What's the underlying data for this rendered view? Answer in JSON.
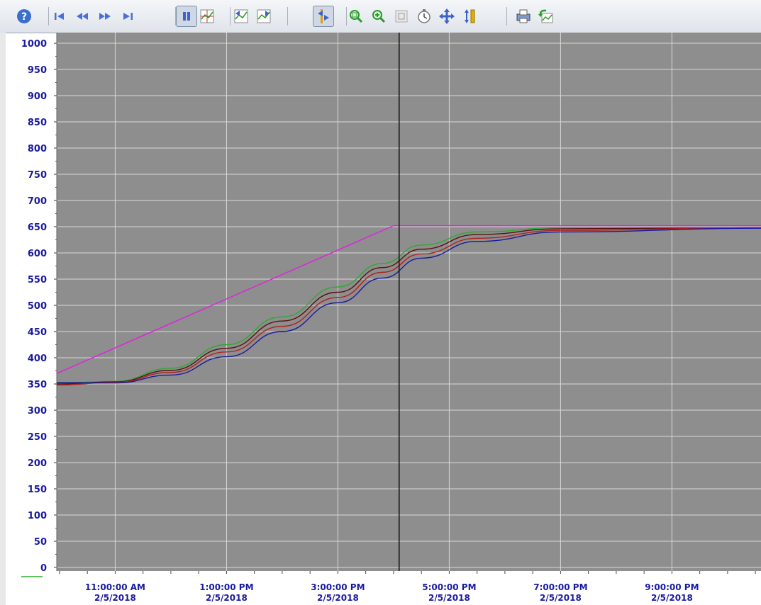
{
  "toolbar": {
    "buttons": [
      {
        "name": "help-icon"
      },
      {
        "name": "first-icon"
      },
      {
        "name": "previous-icon"
      },
      {
        "name": "next-icon"
      },
      {
        "name": "last-icon"
      },
      {
        "name": "pause-icon",
        "active": true
      },
      {
        "name": "trend-select-icon"
      },
      {
        "name": "trend-back-icon"
      },
      {
        "name": "trend-forward-icon"
      },
      {
        "name": "ruler-toggle-icon",
        "active": true
      },
      {
        "name": "zoom-area-icon"
      },
      {
        "name": "zoom-in-icon"
      },
      {
        "name": "zoom-reset-icon"
      },
      {
        "name": "time-range-icon"
      },
      {
        "name": "pan-icon"
      },
      {
        "name": "value-axis-icon"
      },
      {
        "name": "print-icon"
      },
      {
        "name": "undo-icon"
      }
    ]
  },
  "colors": {
    "plot_bg": "#8e8e8e",
    "grid": "#d8d8d8",
    "axis_text": "#1a1aa0",
    "setpoint": "#e020e0",
    "green": "#2fa82f",
    "red": "#b02020",
    "darkred": "#5a1010",
    "navy": "#1a1aa0"
  },
  "chart_data": {
    "type": "line",
    "ylim": [
      0,
      1000
    ],
    "y_ticks": [
      "1000",
      "950",
      "900",
      "850",
      "800",
      "750",
      "700",
      "650",
      "600",
      "550",
      "500",
      "450",
      "400",
      "350",
      "300",
      "250",
      "200",
      "150",
      "100",
      "50",
      "0"
    ],
    "x_ticks": [
      {
        "time": "11:00:00 AM",
        "date": "2/5/2018"
      },
      {
        "time": "1:00:00 PM",
        "date": "2/5/2018"
      },
      {
        "time": "3:00:00 PM",
        "date": "2/5/2018"
      },
      {
        "time": "5:00:00 PM",
        "date": "2/5/2018"
      },
      {
        "time": "7:00:00 PM",
        "date": "2/5/2018"
      },
      {
        "time": "9:00:00 PM",
        "date": "2/5/2018"
      }
    ],
    "x_range_hours": [
      9.95,
      22.6
    ],
    "ruler_hour": 16.1,
    "series": [
      {
        "color": "#e020e0",
        "points": [
          [
            9.95,
            370
          ],
          [
            16.0,
            652
          ],
          [
            22.6,
            652
          ]
        ]
      },
      {
        "color": "#2fa82f",
        "points": [
          [
            9.95,
            352
          ],
          [
            11,
            355
          ],
          [
            12,
            380
          ],
          [
            13,
            425
          ],
          [
            14,
            478
          ],
          [
            15,
            535
          ],
          [
            15.8,
            580
          ],
          [
            16.5,
            615
          ],
          [
            17.5,
            640
          ],
          [
            19,
            648
          ],
          [
            22.6,
            648
          ]
        ]
      },
      {
        "color": "#5a1010",
        "points": [
          [
            9.95,
            350
          ],
          [
            11,
            354
          ],
          [
            12,
            376
          ],
          [
            13,
            418
          ],
          [
            14,
            470
          ],
          [
            15,
            525
          ],
          [
            15.8,
            572
          ],
          [
            16.5,
            607
          ],
          [
            17.5,
            635
          ],
          [
            19,
            646
          ],
          [
            22.6,
            648
          ]
        ]
      },
      {
        "color": "#b02020",
        "points": [
          [
            9.95,
            348
          ],
          [
            11,
            353
          ],
          [
            12,
            372
          ],
          [
            13,
            411
          ],
          [
            14,
            460
          ],
          [
            15,
            515
          ],
          [
            15.8,
            563
          ],
          [
            16.5,
            598
          ],
          [
            17.5,
            628
          ],
          [
            19,
            643
          ],
          [
            22.6,
            648
          ]
        ]
      },
      {
        "color": "#1a1aa0",
        "points": [
          [
            9.95,
            353
          ],
          [
            11,
            352
          ],
          [
            12,
            367
          ],
          [
            13,
            402
          ],
          [
            14,
            450
          ],
          [
            15,
            505
          ],
          [
            15.8,
            552
          ],
          [
            16.5,
            590
          ],
          [
            17.5,
            622
          ],
          [
            19,
            640
          ],
          [
            22.6,
            647
          ]
        ]
      }
    ]
  }
}
